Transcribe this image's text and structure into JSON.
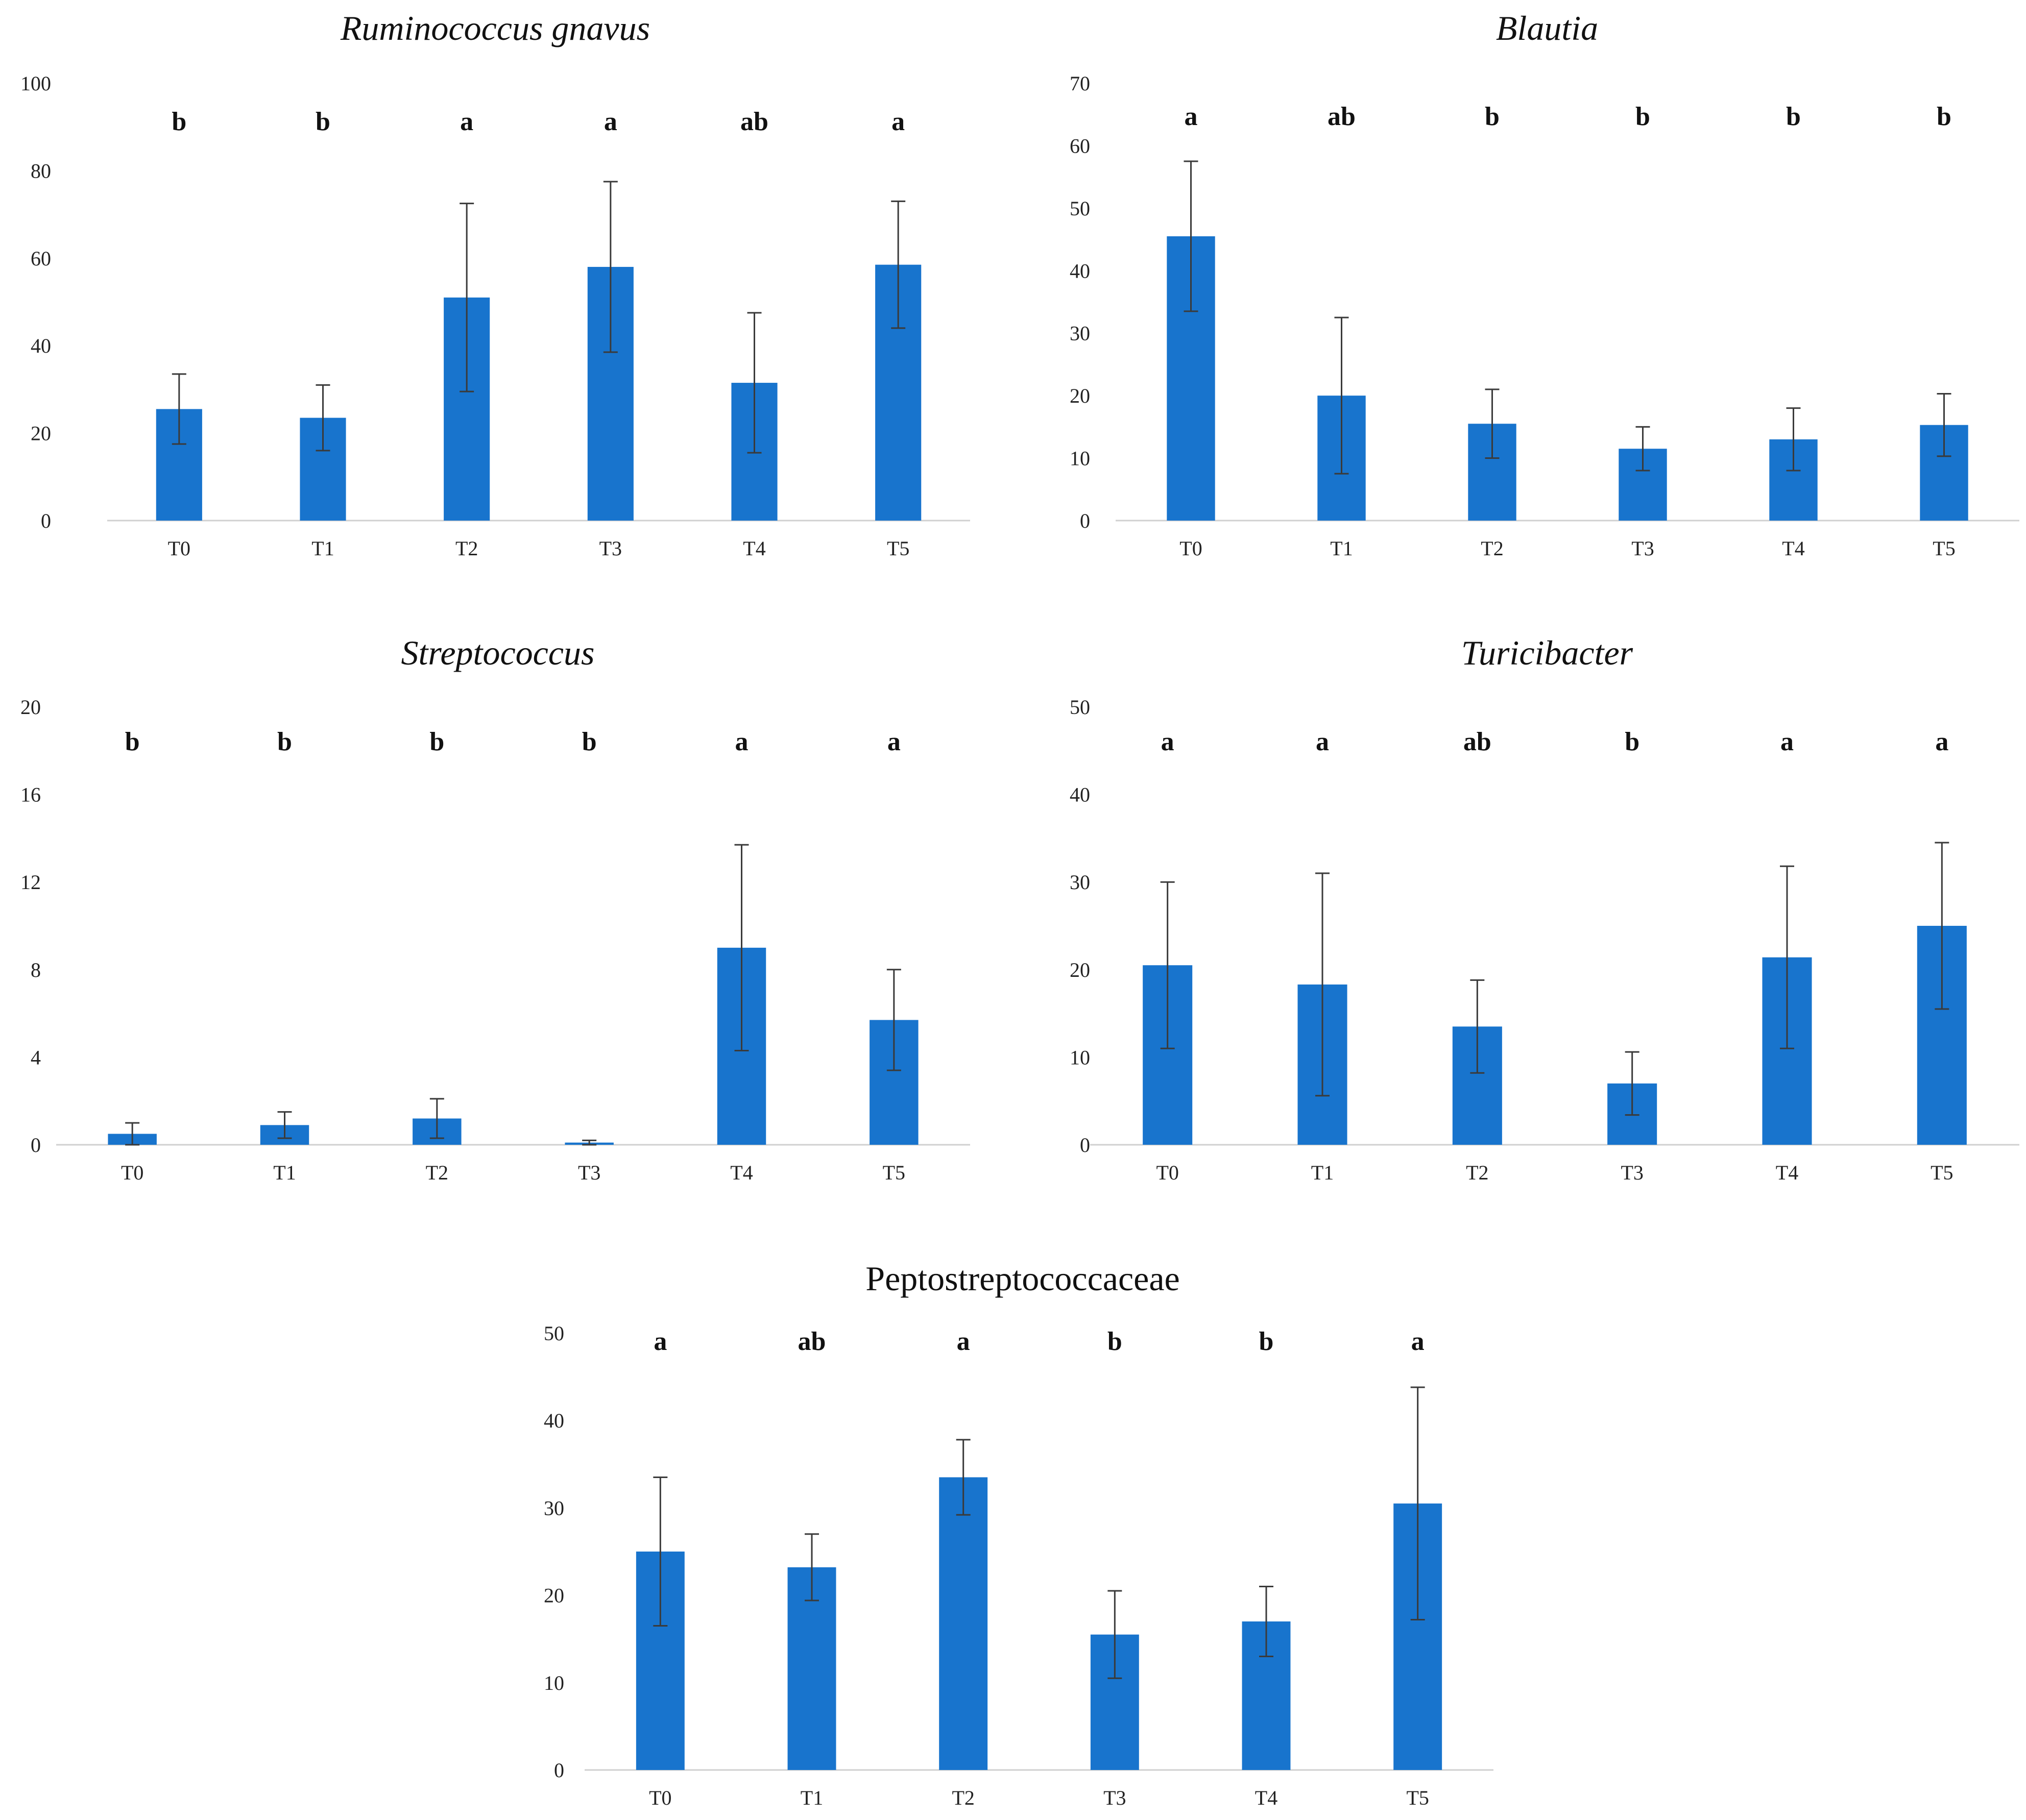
{
  "chart_data": [
    {
      "type": "bar",
      "title": "Ruminococcus gnavus",
      "title_italic": true,
      "categories": [
        "T0",
        "T1",
        "T2",
        "T3",
        "T4",
        "T5"
      ],
      "values": [
        25.5,
        23.5,
        51,
        58,
        31.5,
        58.5
      ],
      "errors": [
        8,
        7.5,
        21.5,
        19.5,
        16,
        14.5
      ],
      "significance": [
        "b",
        "b",
        "a",
        "a",
        "ab",
        "a"
      ],
      "ylim": [
        0,
        100
      ],
      "yticks": [
        0,
        20,
        40,
        60,
        80,
        100
      ],
      "color": "#1874CD",
      "xlabel": "",
      "ylabel": ""
    },
    {
      "type": "bar",
      "title": "Blautia",
      "title_italic": true,
      "categories": [
        "T0",
        "T1",
        "T2",
        "T3",
        "T4",
        "T5"
      ],
      "values": [
        45.5,
        20,
        15.5,
        11.5,
        13,
        15.3
      ],
      "errors": [
        12,
        12.5,
        5.5,
        3.5,
        5,
        5
      ],
      "significance": [
        "a",
        "ab",
        "b",
        "b",
        "b",
        "b"
      ],
      "ylim": [
        0,
        70
      ],
      "yticks": [
        0,
        10,
        20,
        30,
        40,
        50,
        60,
        70
      ],
      "color": "#1874CD",
      "xlabel": "",
      "ylabel": ""
    },
    {
      "type": "bar",
      "title": "Streptococcus",
      "title_italic": true,
      "categories": [
        "T0",
        "T1",
        "T2",
        "T3",
        "T4",
        "T5"
      ],
      "values": [
        0.5,
        0.9,
        1.2,
        0.1,
        9,
        5.7
      ],
      "errors": [
        0.5,
        0.6,
        0.9,
        0.1,
        4.7,
        2.3
      ],
      "significance": [
        "b",
        "b",
        "b",
        "b",
        "a",
        "a"
      ],
      "ylim": [
        0,
        20
      ],
      "yticks": [
        0,
        4,
        8,
        12,
        16,
        20
      ],
      "color": "#1874CD",
      "xlabel": "",
      "ylabel": ""
    },
    {
      "type": "bar",
      "title": "Turicibacter",
      "title_italic": true,
      "categories": [
        "T0",
        "T1",
        "T2",
        "T3",
        "T4",
        "T5"
      ],
      "values": [
        20.5,
        18.3,
        13.5,
        7,
        21.4,
        25
      ],
      "errors": [
        9.5,
        12.7,
        5.3,
        3.6,
        10.4,
        9.5
      ],
      "significance": [
        "a",
        "a",
        "ab",
        "b",
        "a",
        "a"
      ],
      "ylim": [
        0,
        50
      ],
      "yticks": [
        0,
        10,
        20,
        30,
        40,
        50
      ],
      "color": "#1874CD",
      "xlabel": "",
      "ylabel": ""
    },
    {
      "type": "bar",
      "title": "Peptostreptococcaceae",
      "title_italic": false,
      "categories": [
        "T0",
        "T1",
        "T2",
        "T3",
        "T4",
        "T5"
      ],
      "values": [
        25,
        23.2,
        33.5,
        15.5,
        17,
        30.5
      ],
      "errors": [
        8.5,
        3.8,
        4.3,
        5,
        4,
        13.3
      ],
      "significance": [
        "a",
        "ab",
        "a",
        "b",
        "b",
        "a"
      ],
      "ylim": [
        0,
        50
      ],
      "yticks": [
        0,
        10,
        20,
        30,
        40,
        50
      ],
      "color": "#1874CD",
      "xlabel": "",
      "ylabel": ""
    }
  ]
}
